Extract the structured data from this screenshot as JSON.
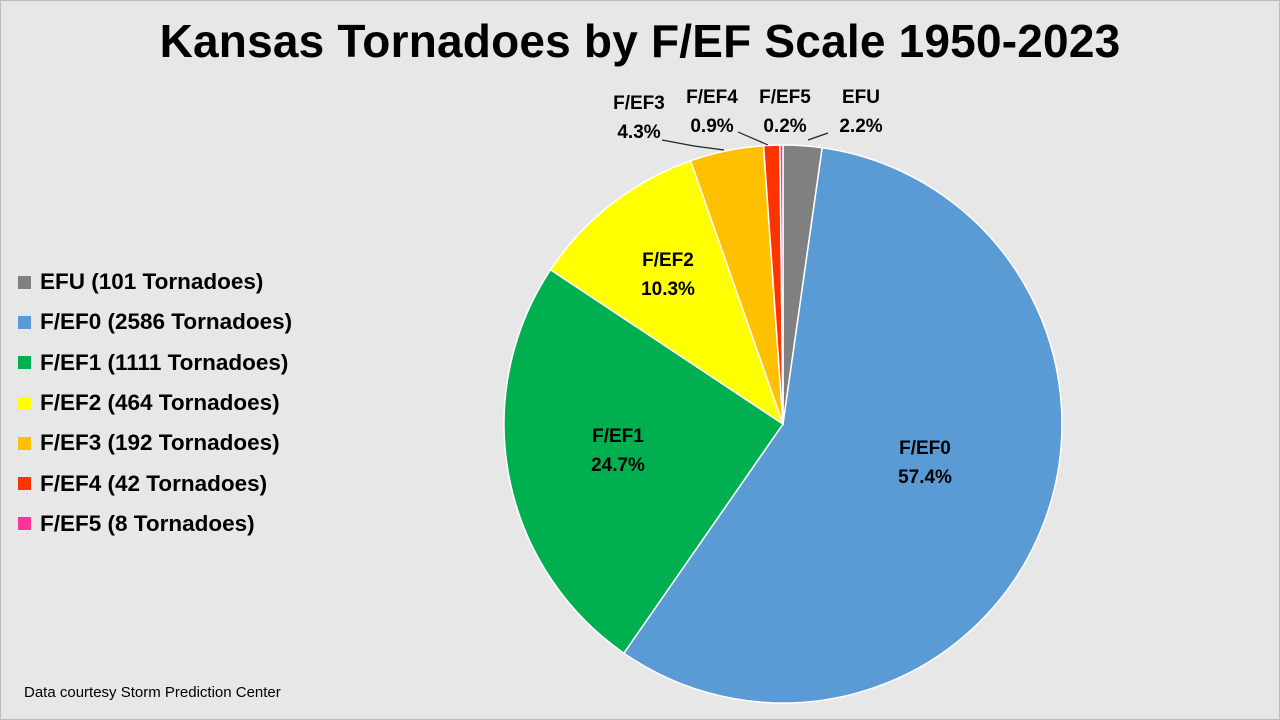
{
  "chart_data": {
    "type": "pie",
    "title": "Kansas Tornadoes by F/EF Scale 1950-2023",
    "slices": [
      {
        "label": "EFU",
        "percent_label": "2.2%",
        "legend": "EFU (101 Tornadoes)",
        "value": 101,
        "color": "#808080"
      },
      {
        "label": "F/EF0",
        "percent_label": "57.4%",
        "legend": "F/EF0 (2586 Tornadoes)",
        "value": 2586,
        "color": "#5b9bd5"
      },
      {
        "label": "F/EF1",
        "percent_label": "24.7%",
        "legend": "F/EF1 (1111 Tornadoes)",
        "value": 1111,
        "color": "#00b050"
      },
      {
        "label": "F/EF2",
        "percent_label": "10.3%",
        "legend": "F/EF2 (464 Tornadoes)",
        "value": 464,
        "color": "#ffff00"
      },
      {
        "label": "F/EF3",
        "percent_label": "4.3%",
        "legend": "F/EF3 (192 Tornadoes)",
        "value": 192,
        "color": "#ffc000"
      },
      {
        "label": "F/EF4",
        "percent_label": "0.9%",
        "legend": "F/EF4 (42 Tornadoes)",
        "value": 42,
        "color": "#ff3300"
      },
      {
        "label": "F/EF5",
        "percent_label": "0.2%",
        "legend": "F/EF5 (8 Tornadoes)",
        "value": 8,
        "color": "#ff3399"
      }
    ],
    "legend_position": "left"
  },
  "credit": "Data courtesy Storm Prediction Center"
}
